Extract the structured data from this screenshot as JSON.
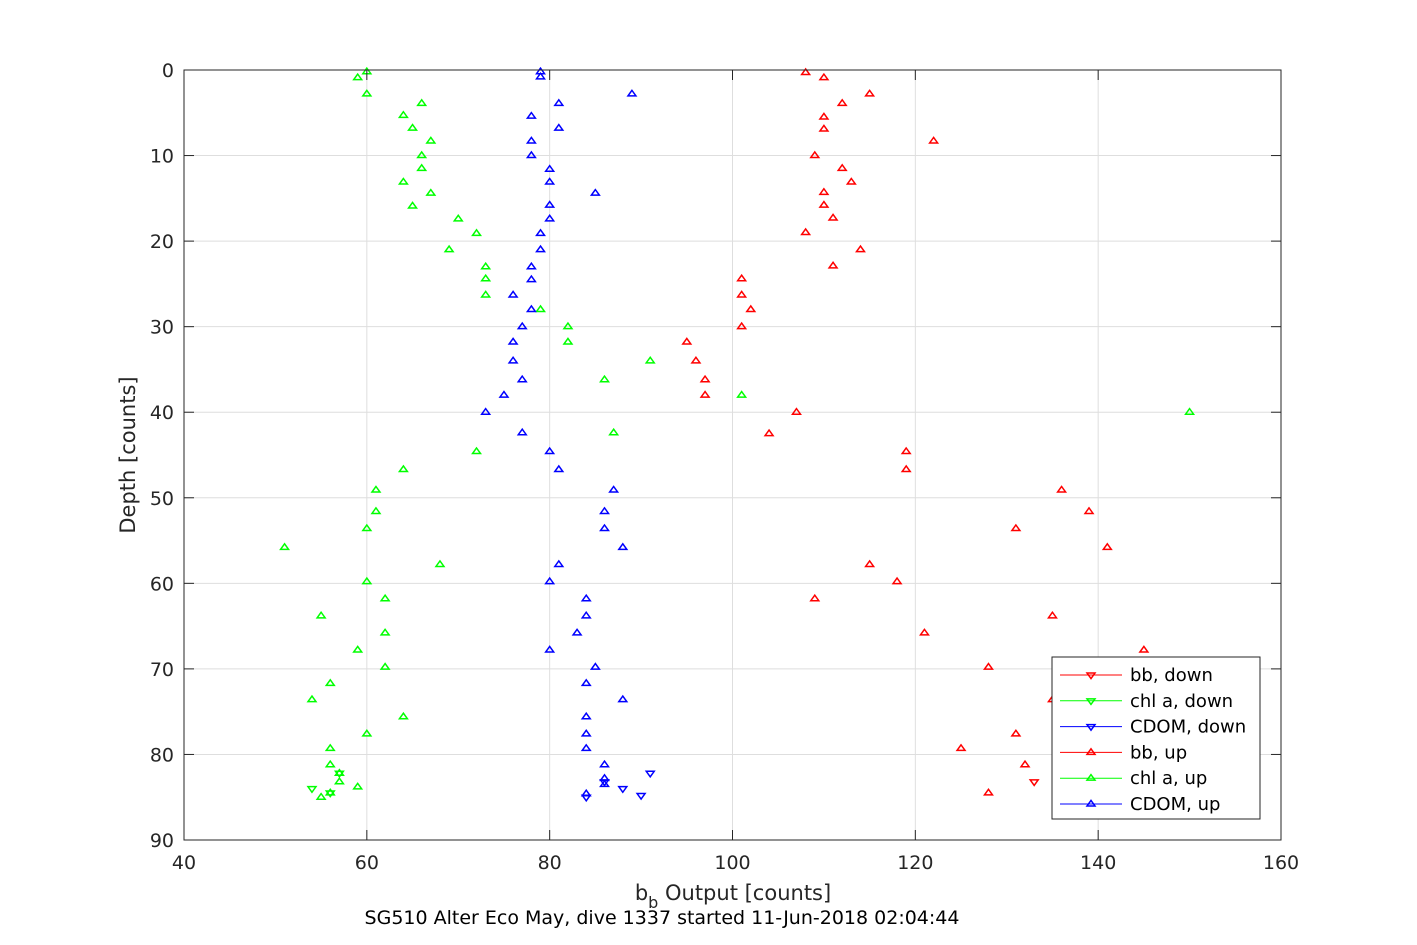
{
  "chart_data": {
    "type": "scatter",
    "xlabel_main": "b",
    "xlabel_sub": "b",
    "xlabel_rest": " Output [counts]",
    "ylabel": "Depth [counts]",
    "caption": "SG510 Alter Eco May, dive 1337 started 11-Jun-2018 02:04:44",
    "xlim": [
      40,
      160
    ],
    "ylim": [
      0,
      90
    ],
    "y_reversed": true,
    "x_ticks": [
      40,
      60,
      80,
      100,
      120,
      140,
      160
    ],
    "y_ticks": [
      0,
      10,
      20,
      30,
      40,
      50,
      60,
      70,
      80,
      90
    ],
    "grid": true,
    "legend_position": "bottom-right",
    "series": [
      {
        "name": "bb, down",
        "color": "#ff0000",
        "marker": "triangle-down",
        "points": [
          [
            133,
            83.2
          ]
        ]
      },
      {
        "name": "chl a, down",
        "color": "#00ff00",
        "marker": "triangle-down",
        "points": [
          [
            54,
            84
          ],
          [
            57,
            82.2
          ],
          [
            56,
            84.5
          ]
        ]
      },
      {
        "name": "CDOM, down",
        "color": "#0000ff",
        "marker": "triangle-down",
        "points": [
          [
            91,
            82.2
          ],
          [
            90,
            84.8
          ],
          [
            88,
            84
          ],
          [
            86,
            83.2
          ],
          [
            84,
            85
          ]
        ]
      },
      {
        "name": "bb, up",
        "color": "#ff0000",
        "marker": "triangle-up",
        "points": [
          [
            108,
            0.3
          ],
          [
            110,
            0.9
          ],
          [
            115,
            2.8
          ],
          [
            112,
            3.9
          ],
          [
            110,
            5.5
          ],
          [
            110,
            6.9
          ],
          [
            122,
            8.3
          ],
          [
            109,
            10
          ],
          [
            112,
            11.5
          ],
          [
            113,
            13.1
          ],
          [
            110,
            14.3
          ],
          [
            110,
            15.8
          ],
          [
            111,
            17.3
          ],
          [
            108,
            19
          ],
          [
            114,
            21
          ],
          [
            111,
            22.9
          ],
          [
            101,
            24.4
          ],
          [
            101,
            26.3
          ],
          [
            102,
            28
          ],
          [
            101,
            30
          ],
          [
            95,
            31.8
          ],
          [
            96,
            34
          ],
          [
            97,
            36.2
          ],
          [
            97,
            38
          ],
          [
            107,
            40
          ],
          [
            104,
            42.5
          ],
          [
            119,
            44.6
          ],
          [
            119,
            46.7
          ],
          [
            136,
            49.1
          ],
          [
            139,
            51.6
          ],
          [
            131,
            53.6
          ],
          [
            141,
            55.8
          ],
          [
            115,
            57.8
          ],
          [
            118,
            59.8
          ],
          [
            109,
            61.8
          ],
          [
            135,
            63.8
          ],
          [
            121,
            65.8
          ],
          [
            145,
            67.8
          ],
          [
            128,
            69.8
          ],
          [
            135,
            73.6
          ],
          [
            131,
            77.6
          ],
          [
            125,
            79.3
          ],
          [
            132,
            81.2
          ],
          [
            128,
            84.5
          ]
        ]
      },
      {
        "name": "chl a, up",
        "color": "#00ff00",
        "marker": "triangle-up",
        "points": [
          [
            60,
            0.2
          ],
          [
            59,
            0.9
          ],
          [
            60,
            2.8
          ],
          [
            66,
            3.9
          ],
          [
            64,
            5.3
          ],
          [
            65,
            6.8
          ],
          [
            67,
            8.3
          ],
          [
            66,
            10
          ],
          [
            66,
            11.5
          ],
          [
            64,
            13.1
          ],
          [
            67,
            14.4
          ],
          [
            65,
            15.9
          ],
          [
            70,
            17.4
          ],
          [
            72,
            19.1
          ],
          [
            69,
            21
          ],
          [
            73,
            23
          ],
          [
            73,
            24.4
          ],
          [
            73,
            26.3
          ],
          [
            79,
            28
          ],
          [
            82,
            30
          ],
          [
            82,
            31.8
          ],
          [
            91,
            34
          ],
          [
            86,
            36.2
          ],
          [
            101,
            38
          ],
          [
            150,
            40
          ],
          [
            87,
            42.4
          ],
          [
            72,
            44.6
          ],
          [
            64,
            46.7
          ],
          [
            61,
            49.1
          ],
          [
            61,
            51.6
          ],
          [
            60,
            53.6
          ],
          [
            51,
            55.8
          ],
          [
            68,
            57.8
          ],
          [
            60,
            59.8
          ],
          [
            62,
            61.8
          ],
          [
            55,
            63.8
          ],
          [
            62,
            65.8
          ],
          [
            59,
            67.8
          ],
          [
            62,
            69.8
          ],
          [
            56,
            71.7
          ],
          [
            54,
            73.6
          ],
          [
            64,
            75.6
          ],
          [
            60,
            77.6
          ],
          [
            56,
            79.3
          ],
          [
            56,
            81.2
          ],
          [
            57,
            82.2
          ],
          [
            57,
            83.2
          ],
          [
            59,
            83.8
          ],
          [
            56,
            84.5
          ],
          [
            55,
            85
          ]
        ]
      },
      {
        "name": "CDOM, up",
        "color": "#0000ff",
        "marker": "triangle-up",
        "points": [
          [
            79,
            0.2
          ],
          [
            79,
            0.8
          ],
          [
            89,
            2.8
          ],
          [
            81,
            3.9
          ],
          [
            78,
            5.4
          ],
          [
            81,
            6.8
          ],
          [
            78,
            8.3
          ],
          [
            78,
            10
          ],
          [
            80,
            11.6
          ],
          [
            80,
            13.1
          ],
          [
            85,
            14.4
          ],
          [
            80,
            15.8
          ],
          [
            80,
            17.4
          ],
          [
            79,
            19.1
          ],
          [
            79,
            21
          ],
          [
            78,
            23
          ],
          [
            78,
            24.5
          ],
          [
            76,
            26.3
          ],
          [
            78,
            28
          ],
          [
            77,
            30
          ],
          [
            76,
            31.8
          ],
          [
            76,
            34
          ],
          [
            77,
            36.2
          ],
          [
            75,
            38
          ],
          [
            73,
            40
          ],
          [
            77,
            42.4
          ],
          [
            80,
            44.6
          ],
          [
            81,
            46.7
          ],
          [
            87,
            49.1
          ],
          [
            86,
            51.6
          ],
          [
            86,
            53.6
          ],
          [
            88,
            55.8
          ],
          [
            81,
            57.8
          ],
          [
            80,
            59.8
          ],
          [
            84,
            61.8
          ],
          [
            84,
            63.8
          ],
          [
            83,
            65.8
          ],
          [
            80,
            67.8
          ],
          [
            85,
            69.8
          ],
          [
            84,
            71.7
          ],
          [
            88,
            73.6
          ],
          [
            84,
            75.6
          ],
          [
            84,
            77.6
          ],
          [
            84,
            79.3
          ],
          [
            86,
            81.2
          ],
          [
            86,
            82.8
          ],
          [
            86,
            83.5
          ],
          [
            84,
            84.6
          ]
        ]
      }
    ]
  }
}
